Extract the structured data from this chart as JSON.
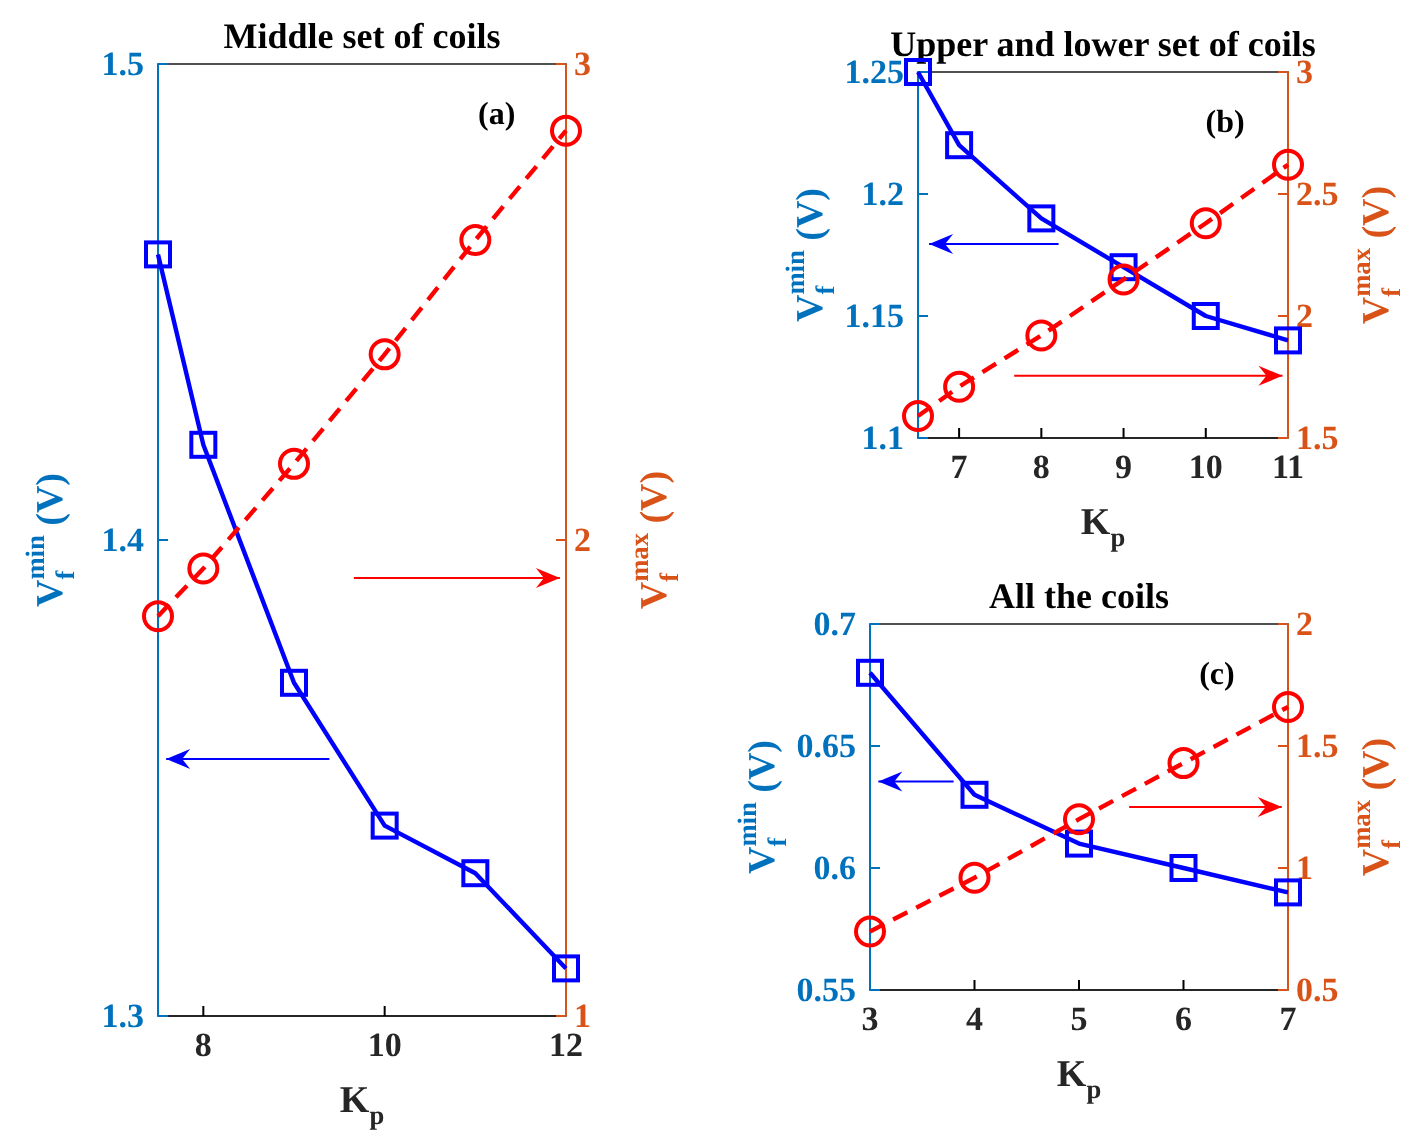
{
  "chart_data": [
    {
      "type": "line",
      "title": "Middle set of coils",
      "xlabel": "K$_{p}$",
      "ylabel": "V$^{min}$$_{f}$ (V)",
      "y2label": "V$^{max}$$_{f}$ (V)",
      "annotations": [
        "(a)"
      ],
      "x": [
        7.5,
        8,
        9,
        10,
        11,
        12
      ],
      "xlim": [
        7.5,
        12
      ],
      "xticks": [
        8,
        10,
        12
      ],
      "ylim": [
        1.3,
        1.5
      ],
      "yticks": [
        1.3,
        1.4,
        1.5
      ],
      "y2lim": [
        1,
        3
      ],
      "y2ticks": [
        1,
        2,
        3
      ],
      "series": [
        {
          "color": "#0000ff",
          "marker": "square",
          "line_style": "solid",
          "values": [
            1.46,
            1.42,
            1.37,
            1.34,
            1.33,
            1.31
          ]
        },
        {
          "color": "#ff0000",
          "marker": "circle",
          "line_style": "dashed",
          "axis": "y2",
          "values": [
            1.84,
            1.94,
            2.16,
            2.39,
            2.63,
            2.86
          ]
        }
      ]
    },
    {
      "type": "line",
      "title": "Upper and lower set of coils",
      "xlabel": "K$_{p}$",
      "ylabel": "V$^{min}$$_{f}$ (V)",
      "y2label": "V$^{max}$$_{f}$ (V)",
      "annotations": [
        "(b)"
      ],
      "x": [
        6.5,
        7,
        8,
        9,
        10,
        11
      ],
      "xlim": [
        6.5,
        11
      ],
      "xticks": [
        7,
        8,
        9,
        10,
        11
      ],
      "ylim": [
        1.1,
        1.25
      ],
      "yticks": [
        1.1,
        1.15,
        1.2,
        1.25
      ],
      "y2lim": [
        1.5,
        3
      ],
      "y2ticks": [
        1.5,
        2,
        2.5,
        3
      ],
      "series": [
        {
          "color": "#0000ff",
          "marker": "square",
          "line_style": "solid",
          "values": [
            1.25,
            1.22,
            1.19,
            1.17,
            1.15,
            1.14
          ]
        },
        {
          "color": "#ff0000",
          "marker": "circle",
          "line_style": "dashed",
          "axis": "y2",
          "values": [
            1.59,
            1.71,
            1.92,
            2.15,
            2.38,
            2.62
          ]
        }
      ]
    },
    {
      "type": "line",
      "title": "All the coils",
      "xlabel": "K$_{p}$",
      "ylabel": "V$^{min}$$_{f}$ (V)",
      "y2label": "V$^{max}$$_{f}$ (V)",
      "annotations": [
        "(c)"
      ],
      "x": [
        3,
        4,
        5,
        6,
        7
      ],
      "xlim": [
        3,
        7
      ],
      "xticks": [
        3,
        4,
        5,
        6,
        7
      ],
      "ylim": [
        0.55,
        0.7
      ],
      "yticks": [
        0.55,
        0.6,
        0.65,
        0.7
      ],
      "y2lim": [
        0.5,
        2
      ],
      "y2ticks": [
        0.5,
        1,
        1.5,
        2
      ],
      "series": [
        {
          "color": "#0000ff",
          "marker": "square",
          "line_style": "solid",
          "values": [
            0.68,
            0.63,
            0.61,
            0.6,
            0.59
          ]
        },
        {
          "color": "#ff0000",
          "marker": "circle",
          "line_style": "dashed",
          "axis": "y2",
          "values": [
            0.74,
            0.96,
            1.2,
            1.43,
            1.66
          ]
        }
      ]
    }
  ]
}
